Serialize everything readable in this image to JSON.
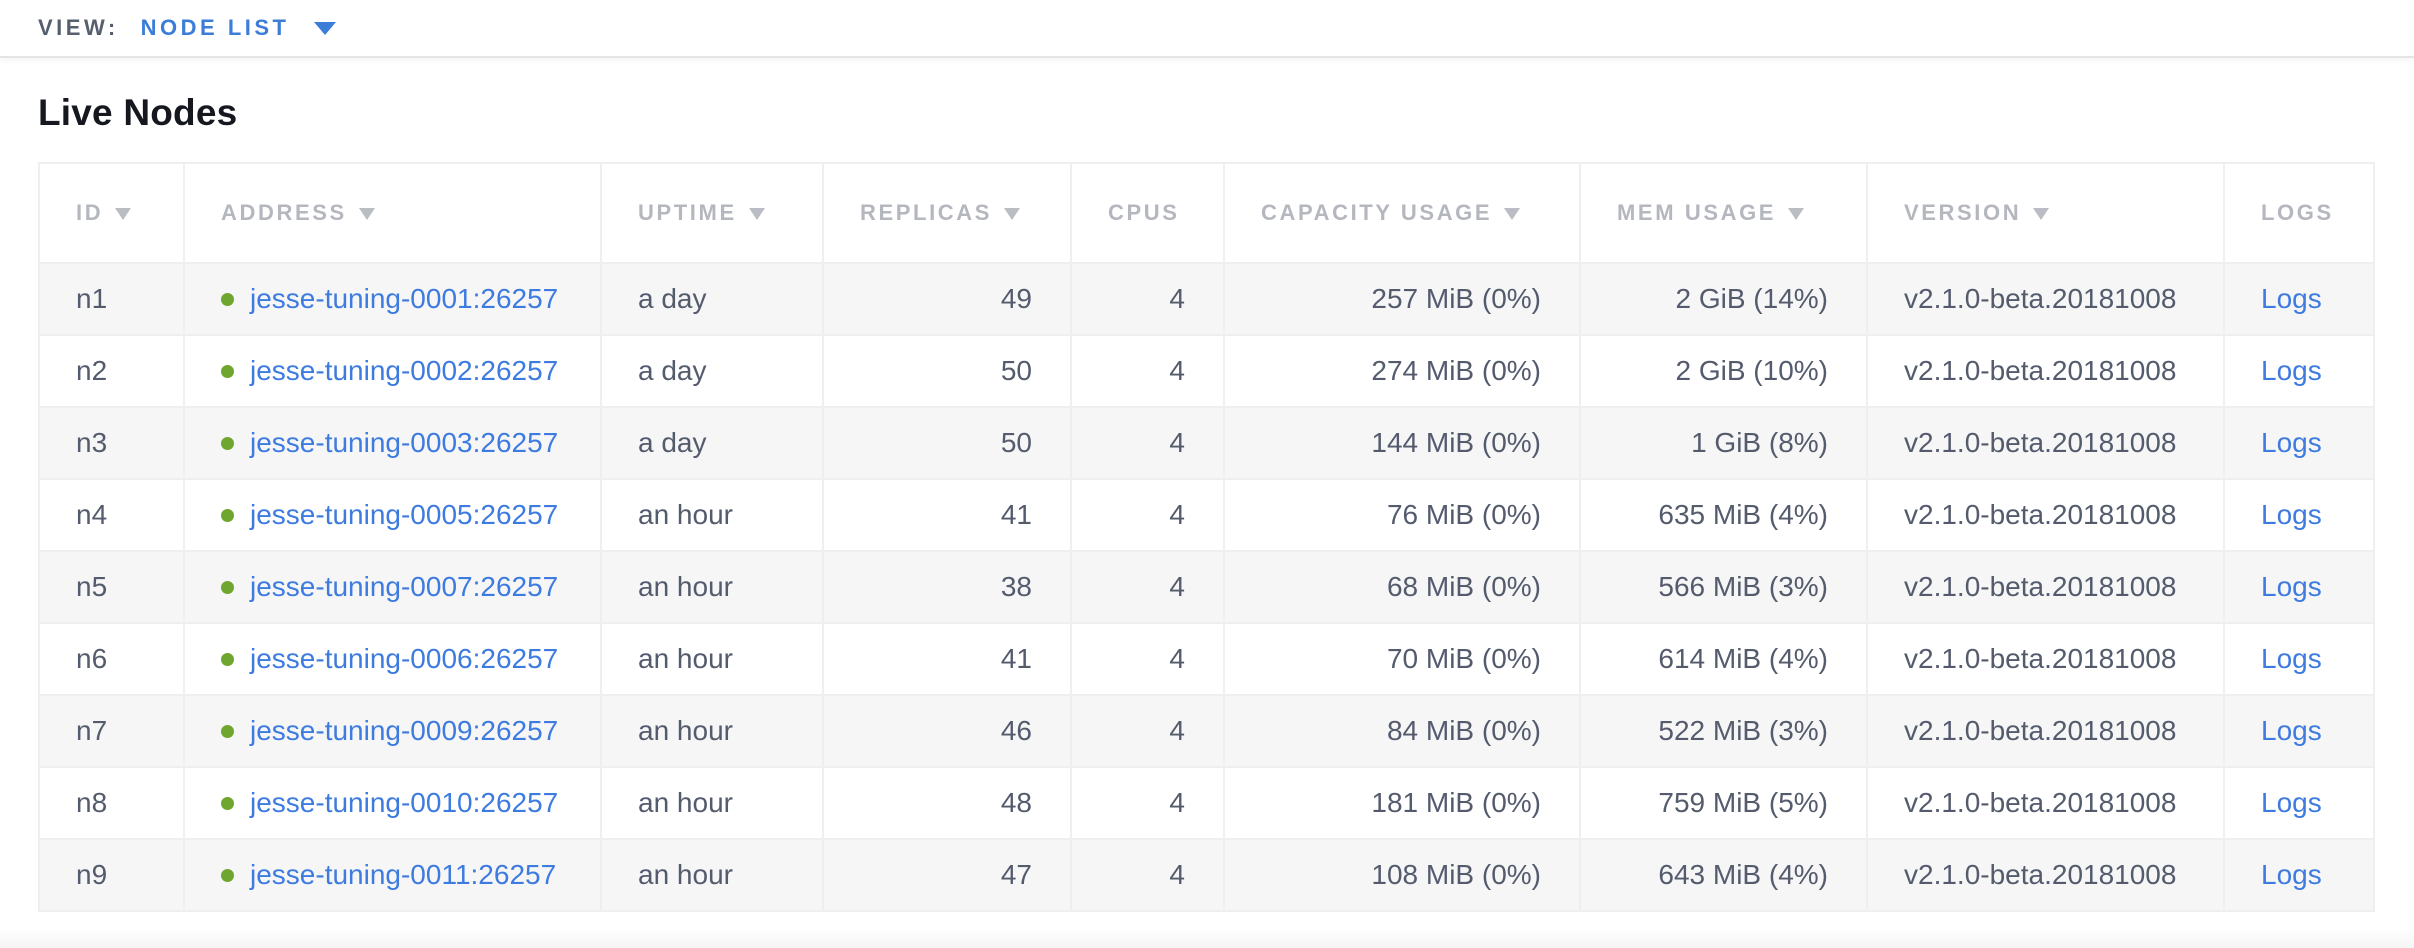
{
  "topbar": {
    "view_label": "VIEW:",
    "view_value": "NODE LIST"
  },
  "page": {
    "title": "Live Nodes"
  },
  "table": {
    "columns": [
      {
        "key": "id",
        "label": "ID",
        "sortable": true,
        "numeric": false
      },
      {
        "key": "address",
        "label": "ADDRESS",
        "sortable": true,
        "numeric": false
      },
      {
        "key": "uptime",
        "label": "UPTIME",
        "sortable": true,
        "numeric": false
      },
      {
        "key": "replicas",
        "label": "REPLICAS",
        "sortable": true,
        "numeric": true
      },
      {
        "key": "cpus",
        "label": "CPUS",
        "sortable": false,
        "numeric": true
      },
      {
        "key": "capacity",
        "label": "CAPACITY USAGE",
        "sortable": true,
        "numeric": true
      },
      {
        "key": "mem",
        "label": "MEM USAGE",
        "sortable": true,
        "numeric": true
      },
      {
        "key": "version",
        "label": "VERSION",
        "sortable": true,
        "numeric": false
      },
      {
        "key": "logs",
        "label": "LOGS",
        "sortable": false,
        "numeric": false
      }
    ],
    "rows": [
      {
        "id": "n1",
        "status": "live",
        "address": "jesse-tuning-0001:26257",
        "uptime": "a day",
        "replicas": "49",
        "cpus": "4",
        "capacity": "257 MiB (0%)",
        "mem": "2 GiB (14%)",
        "version": "v2.1.0-beta.20181008",
        "logs": "Logs"
      },
      {
        "id": "n2",
        "status": "live",
        "address": "jesse-tuning-0002:26257",
        "uptime": "a day",
        "replicas": "50",
        "cpus": "4",
        "capacity": "274 MiB (0%)",
        "mem": "2 GiB (10%)",
        "version": "v2.1.0-beta.20181008",
        "logs": "Logs"
      },
      {
        "id": "n3",
        "status": "live",
        "address": "jesse-tuning-0003:26257",
        "uptime": "a day",
        "replicas": "50",
        "cpus": "4",
        "capacity": "144 MiB (0%)",
        "mem": "1 GiB (8%)",
        "version": "v2.1.0-beta.20181008",
        "logs": "Logs"
      },
      {
        "id": "n4",
        "status": "live",
        "address": "jesse-tuning-0005:26257",
        "uptime": "an hour",
        "replicas": "41",
        "cpus": "4",
        "capacity": "76 MiB (0%)",
        "mem": "635 MiB (4%)",
        "version": "v2.1.0-beta.20181008",
        "logs": "Logs"
      },
      {
        "id": "n5",
        "status": "live",
        "address": "jesse-tuning-0007:26257",
        "uptime": "an hour",
        "replicas": "38",
        "cpus": "4",
        "capacity": "68 MiB (0%)",
        "mem": "566 MiB (3%)",
        "version": "v2.1.0-beta.20181008",
        "logs": "Logs"
      },
      {
        "id": "n6",
        "status": "live",
        "address": "jesse-tuning-0006:26257",
        "uptime": "an hour",
        "replicas": "41",
        "cpus": "4",
        "capacity": "70 MiB (0%)",
        "mem": "614 MiB (4%)",
        "version": "v2.1.0-beta.20181008",
        "logs": "Logs"
      },
      {
        "id": "n7",
        "status": "live",
        "address": "jesse-tuning-0009:26257",
        "uptime": "an hour",
        "replicas": "46",
        "cpus": "4",
        "capacity": "84 MiB (0%)",
        "mem": "522 MiB (3%)",
        "version": "v2.1.0-beta.20181008",
        "logs": "Logs"
      },
      {
        "id": "n8",
        "status": "live",
        "address": "jesse-tuning-0010:26257",
        "uptime": "an hour",
        "replicas": "48",
        "cpus": "4",
        "capacity": "181 MiB (0%)",
        "mem": "759 MiB (5%)",
        "version": "v2.1.0-beta.20181008",
        "logs": "Logs"
      },
      {
        "id": "n9",
        "status": "live",
        "address": "jesse-tuning-0011:26257",
        "uptime": "an hour",
        "replicas": "47",
        "cpus": "4",
        "capacity": "108 MiB (0%)",
        "mem": "643 MiB (4%)",
        "version": "v2.1.0-beta.20181008",
        "logs": "Logs"
      }
    ]
  },
  "colors": {
    "accent_blue": "#3b7dd8",
    "link_blue": "#3d7be0",
    "live_dot_green": "#6fa62f",
    "header_gray": "#b4b7bd",
    "cell_text": "#545b6d",
    "zebra_row": "#f6f6f7"
  }
}
